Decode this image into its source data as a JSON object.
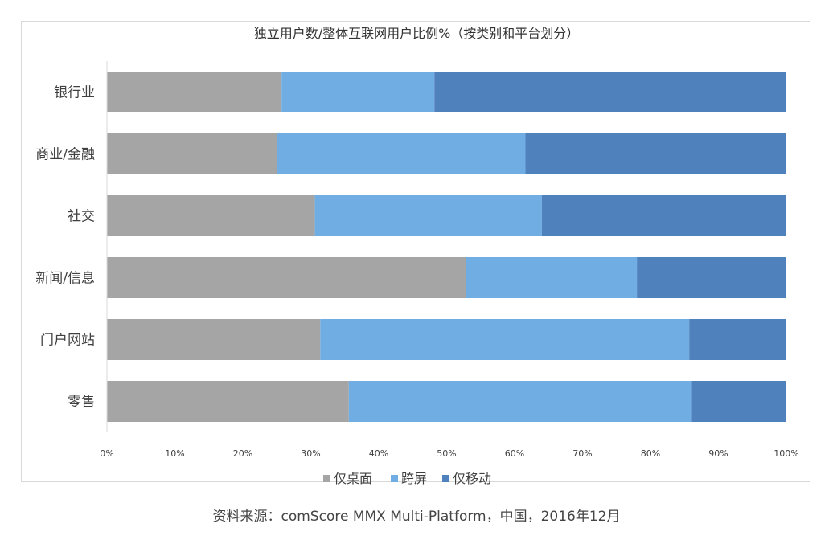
{
  "chart_data": {
    "type": "bar",
    "orientation": "horizontal",
    "stacked": true,
    "percent_stacked": true,
    "title": "独立用户数/整体互联网用户比例%（按类别和平台划分）",
    "categories": [
      "银行业",
      "商业/金融",
      "社交",
      "新闻/信息",
      "门户网站",
      "零售"
    ],
    "series": [
      {
        "name": "仅桌面",
        "color": "#a5a5a5",
        "values": [
          25.7,
          25.0,
          30.6,
          52.9,
          31.4,
          35.6
        ]
      },
      {
        "name": "跨屏",
        "color": "#70ade3",
        "values": [
          22.5,
          36.6,
          33.4,
          25.1,
          54.3,
          50.5
        ]
      },
      {
        "name": "仅移动",
        "color": "#4f81bd",
        "values": [
          51.8,
          38.4,
          36.0,
          22.0,
          14.3,
          13.9
        ]
      }
    ],
    "x_ticks": [
      "0%",
      "10%",
      "20%",
      "30%",
      "40%",
      "50%",
      "60%",
      "70%",
      "80%",
      "90%",
      "100%"
    ],
    "xlim": [
      0,
      100
    ],
    "grid": false,
    "legend_position": "bottom"
  },
  "source": "资料来源：comScore MMX Multi-Platform，中国，2016年12月"
}
